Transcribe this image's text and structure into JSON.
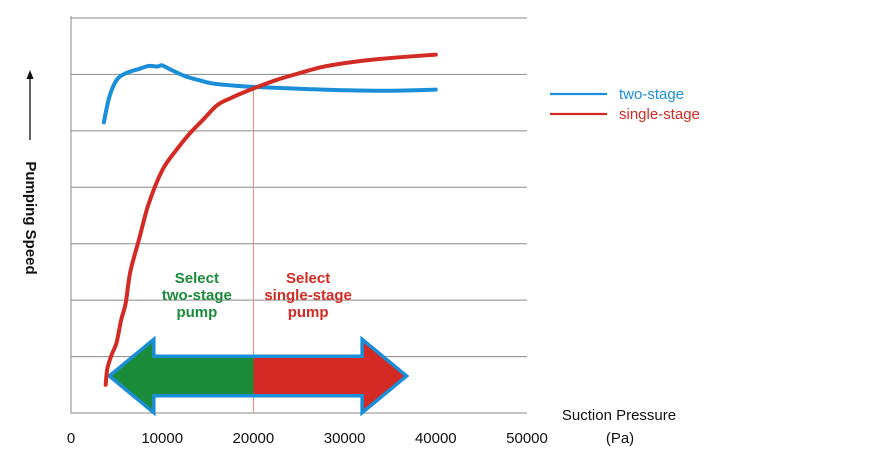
{
  "chart_data": {
    "type": "line",
    "xlabel": "Suction Pressure",
    "xlabel_unit": "(Pa)",
    "ylabel": "Pumping Speed",
    "xlim": [
      0,
      50000
    ],
    "ylim": [
      0,
      7
    ],
    "x_ticks": [
      "0",
      "10000",
      "20000",
      "30000",
      "40000",
      "50000"
    ],
    "grid": "horizontal",
    "legend_position": "right",
    "colors": {
      "two_stage": "#1a8fd8",
      "single_stage": "#d42a24",
      "arrow_left": "#1a8c3a",
      "arrow_right": "#d42a24",
      "arrow_border": "#1a8fd8",
      "crossover": "#e08a8a"
    },
    "series": [
      {
        "name": "two-stage",
        "color": "#1a8fd8",
        "x": [
          3600,
          4200,
          5000,
          6000,
          7500,
          8500,
          9500,
          10000,
          11000,
          12500,
          14000,
          15500,
          18000,
          20000,
          23000,
          26000,
          30000,
          35000,
          40000
        ],
        "y": [
          5.15,
          5.6,
          5.9,
          6.02,
          6.1,
          6.15,
          6.14,
          6.16,
          6.08,
          5.97,
          5.9,
          5.84,
          5.8,
          5.78,
          5.76,
          5.74,
          5.72,
          5.71,
          5.73
        ]
      },
      {
        "name": "single-stage",
        "color": "#d42a24",
        "x": [
          3800,
          4000,
          4500,
          5000,
          5500,
          6000,
          6500,
          7500,
          8500,
          10000,
          11500,
          13000,
          14500,
          16000,
          17500,
          20000,
          22500,
          25000,
          27500,
          30000,
          33000,
          36500,
          40000
        ],
        "y": [
          0.5,
          0.8,
          1.05,
          1.25,
          1.65,
          1.95,
          2.5,
          3.1,
          3.7,
          4.3,
          4.65,
          4.95,
          5.2,
          5.45,
          5.58,
          5.75,
          5.9,
          6.02,
          6.13,
          6.2,
          6.26,
          6.31,
          6.35
        ]
      }
    ],
    "crossover_x": 20000,
    "regions": [
      {
        "lines": [
          "Select",
          "two-stage",
          "pump"
        ],
        "x_from": 4500,
        "x_to": 20000,
        "color": "#1a8c3a"
      },
      {
        "lines": [
          "Select",
          "single-stage",
          "pump"
        ],
        "x_from": 20000,
        "x_to": 36500,
        "color": "#d42a24"
      }
    ]
  }
}
